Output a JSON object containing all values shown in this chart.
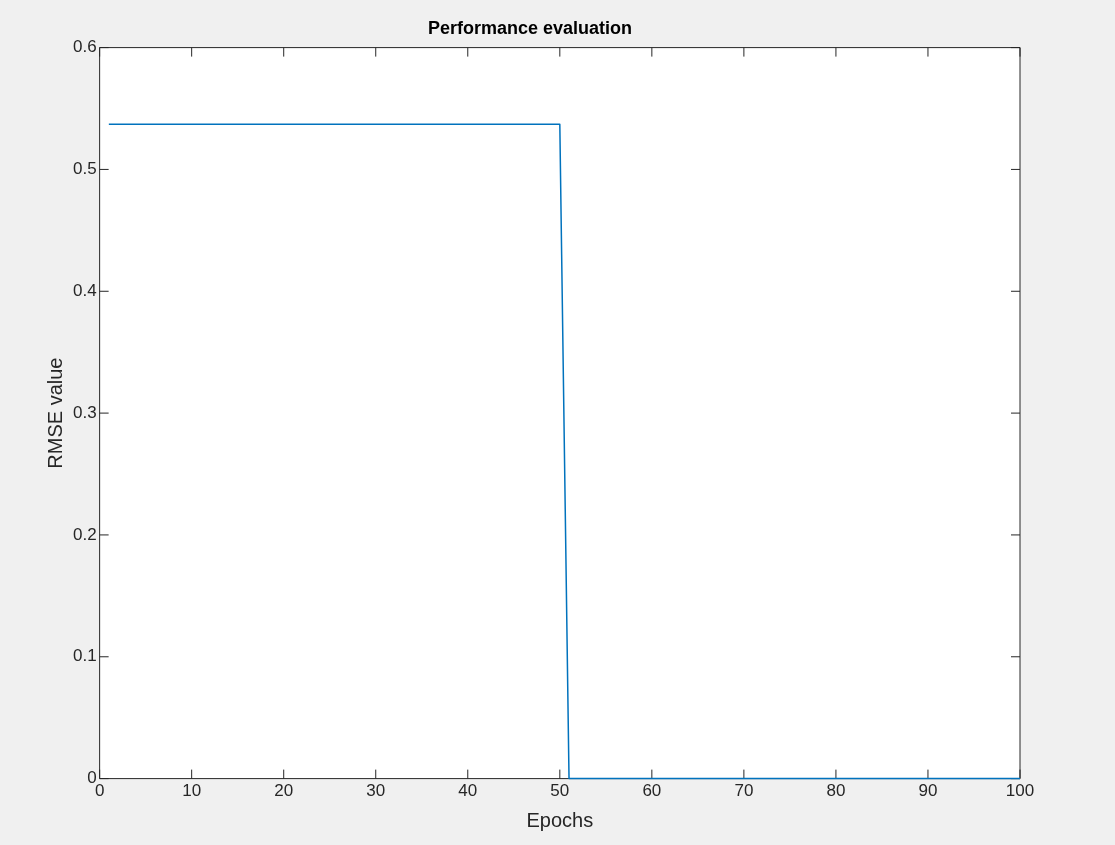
{
  "chart_data": {
    "type": "line",
    "title": "Performance evaluation",
    "xlabel": "Epochs",
    "ylabel": "RMSE value",
    "x": [
      1,
      50,
      51,
      100
    ],
    "series": [
      {
        "color": "#0072bd",
        "values": [
          0.537,
          0.537,
          0,
          0
        ]
      }
    ],
    "xlim": [
      0,
      100
    ],
    "xticks": [
      0,
      10,
      20,
      30,
      40,
      50,
      60,
      70,
      80,
      90,
      100
    ],
    "ylim": [
      0,
      0.6
    ],
    "yticks": [
      0,
      0.1,
      0.2,
      0.3,
      0.4,
      0.5,
      0.6
    ],
    "grid": false,
    "legend": false,
    "marker": "none",
    "line_style": "solid"
  }
}
